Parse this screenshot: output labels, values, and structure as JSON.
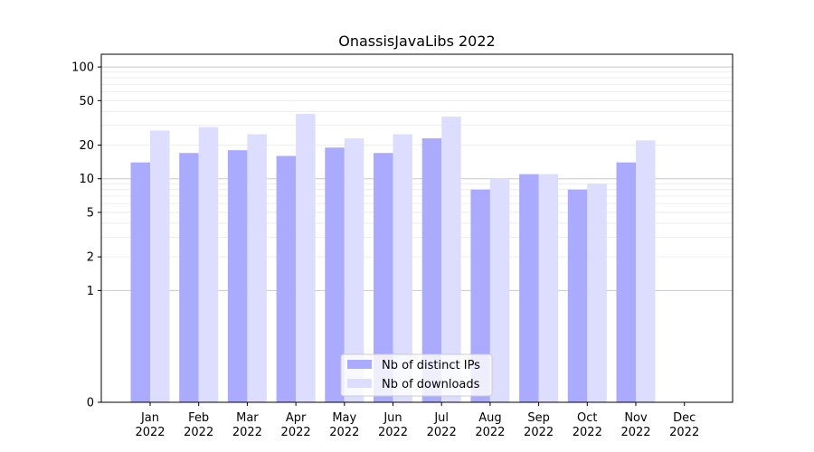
{
  "chart_data": {
    "type": "bar",
    "title": "OnassisJavaLibs 2022",
    "xlabel": "",
    "ylabel": "",
    "y_scale": "symlog",
    "y_ticks": [
      "0",
      "1",
      "2",
      "5",
      "10",
      "20",
      "50",
      "100"
    ],
    "ylim": [
      0,
      130
    ],
    "categories": [
      {
        "month": "Jan",
        "year": "2022"
      },
      {
        "month": "Feb",
        "year": "2022"
      },
      {
        "month": "Mar",
        "year": "2022"
      },
      {
        "month": "Apr",
        "year": "2022"
      },
      {
        "month": "May",
        "year": "2022"
      },
      {
        "month": "Jun",
        "year": "2022"
      },
      {
        "month": "Jul",
        "year": "2022"
      },
      {
        "month": "Aug",
        "year": "2022"
      },
      {
        "month": "Sep",
        "year": "2022"
      },
      {
        "month": "Oct",
        "year": "2022"
      },
      {
        "month": "Nov",
        "year": "2022"
      },
      {
        "month": "Dec",
        "year": "2022"
      }
    ],
    "series": [
      {
        "name": "Nb of distinct IPs",
        "color": "#aaaaff",
        "values": [
          14,
          17,
          18,
          16,
          19,
          17,
          23,
          8,
          11,
          8,
          14,
          0
        ]
      },
      {
        "name": "Nb of downloads",
        "color": "#ddddff",
        "values": [
          27,
          29,
          25,
          38,
          23,
          25,
          36,
          10,
          11,
          9,
          22,
          0
        ]
      }
    ],
    "legend_position": "bottom-center",
    "grid": true
  }
}
